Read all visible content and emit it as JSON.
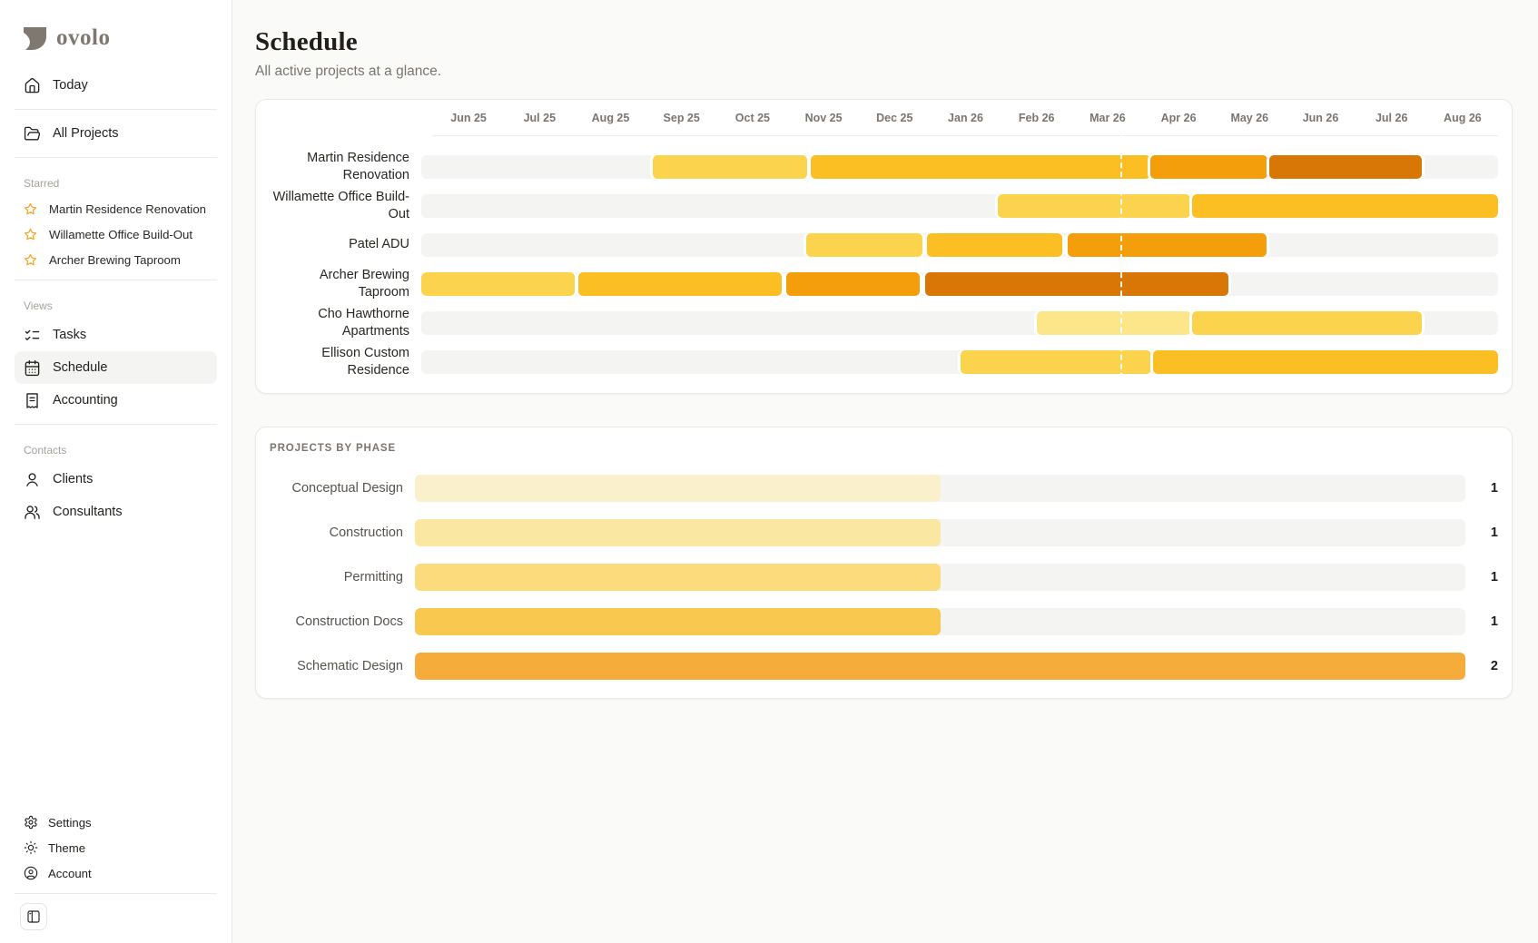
{
  "brand": {
    "name": "ovolo",
    "color": "#7E7870"
  },
  "sidebar": {
    "today_label": "Today",
    "all_projects_label": "All Projects",
    "starred_label": "Starred",
    "starred": [
      {
        "label": "Martin Residence Renovation"
      },
      {
        "label": "Willamette Office Build-Out"
      },
      {
        "label": "Archer Brewing Taproom"
      }
    ],
    "views_label": "Views",
    "views": [
      {
        "label": "Tasks"
      },
      {
        "label": "Schedule",
        "active": true
      },
      {
        "label": "Accounting"
      }
    ],
    "contacts_label": "Contacts",
    "contacts": [
      {
        "label": "Clients"
      },
      {
        "label": "Consultants"
      }
    ],
    "footer": [
      {
        "label": "Settings"
      },
      {
        "label": "Theme"
      },
      {
        "label": "Account"
      }
    ]
  },
  "header": {
    "title": "Schedule",
    "subtitle": "All active projects at a glance."
  },
  "colors": {
    "track": "#F4F4F3",
    "star": "#F6A21E"
  },
  "chart_data": [
    {
      "type": "gantt",
      "title": "Schedule",
      "x_axis_labels": [
        "Jun 25",
        "Jul 25",
        "Aug 25",
        "Sep 25",
        "Oct 25",
        "Nov 25",
        "Dec 25",
        "Jan 26",
        "Feb 26",
        "Mar 26",
        "Apr 26",
        "May 26",
        "Jun 26",
        "Jul 26",
        "Aug 26"
      ],
      "timeline_months": 15,
      "timeline_start": "Jun 2025",
      "timeline_end": "Aug 2026",
      "today_marker_month": 9.68,
      "track_color": "#F4F4F3",
      "projects": [
        {
          "name": "Martin Residence Renovation",
          "segments": [
            {
              "start": 3.23,
              "end": 5.37,
              "color": "#FCD34D"
            },
            {
              "start": 5.43,
              "end": 10.15,
              "color": "#FBBF24"
            },
            {
              "start": 10.16,
              "end": 11.79,
              "color": "#F59E0B"
            },
            {
              "start": 11.81,
              "end": 13.94,
              "color": "#D97706"
            }
          ]
        },
        {
          "name": "Willamette Office Build-Out",
          "segments": [
            {
              "start": 8.03,
              "end": 10.71,
              "color": "#FCD34D"
            },
            {
              "start": 10.74,
              "end": 15,
              "color": "#FBBF24"
            }
          ]
        },
        {
          "name": "Patel ADU",
          "segments": [
            {
              "start": 5.36,
              "end": 6.98,
              "color": "#FCD34D"
            },
            {
              "start": 7.04,
              "end": 8.93,
              "color": "#FBBF24"
            },
            {
              "start": 9.01,
              "end": 11.78,
              "color": "#F59E0B"
            }
          ]
        },
        {
          "name": "Archer Brewing Taproom",
          "segments": [
            {
              "start": 0,
              "end": 2.14,
              "color": "#FCD34D"
            },
            {
              "start": 2.19,
              "end": 5.02,
              "color": "#FBBF24"
            },
            {
              "start": 5.08,
              "end": 6.94,
              "color": "#F59E0B"
            },
            {
              "start": 7.02,
              "end": 11.25,
              "color": "#D97706"
            }
          ]
        },
        {
          "name": "Cho Hawthorne Apartments",
          "segments": [
            {
              "start": 8.57,
              "end": 10.73,
              "color": "#FDE68A"
            },
            {
              "start": 10.74,
              "end": 13.94,
              "color": "#FCD34D"
            }
          ]
        },
        {
          "name": "Ellison Custom Residence",
          "segments": [
            {
              "start": 7.51,
              "end": 10.17,
              "color": "#FCD34D"
            },
            {
              "start": 10.19,
              "end": 15,
              "color": "#FBBF24"
            }
          ]
        }
      ]
    },
    {
      "type": "bar",
      "title": "PROJECTS BY PHASE",
      "categories": [
        "Conceptual Design",
        "Construction",
        "Permitting",
        "Construction Docs",
        "Schematic Design"
      ],
      "values": [
        1,
        1,
        1,
        1,
        2
      ],
      "colors": [
        "#FAF0CB",
        "#FAE7A1",
        "#FBDB7B",
        "#F9C94F",
        "#F5AC3B"
      ],
      "xlim": [
        0,
        2
      ],
      "legend": "none",
      "grid": false
    }
  ]
}
